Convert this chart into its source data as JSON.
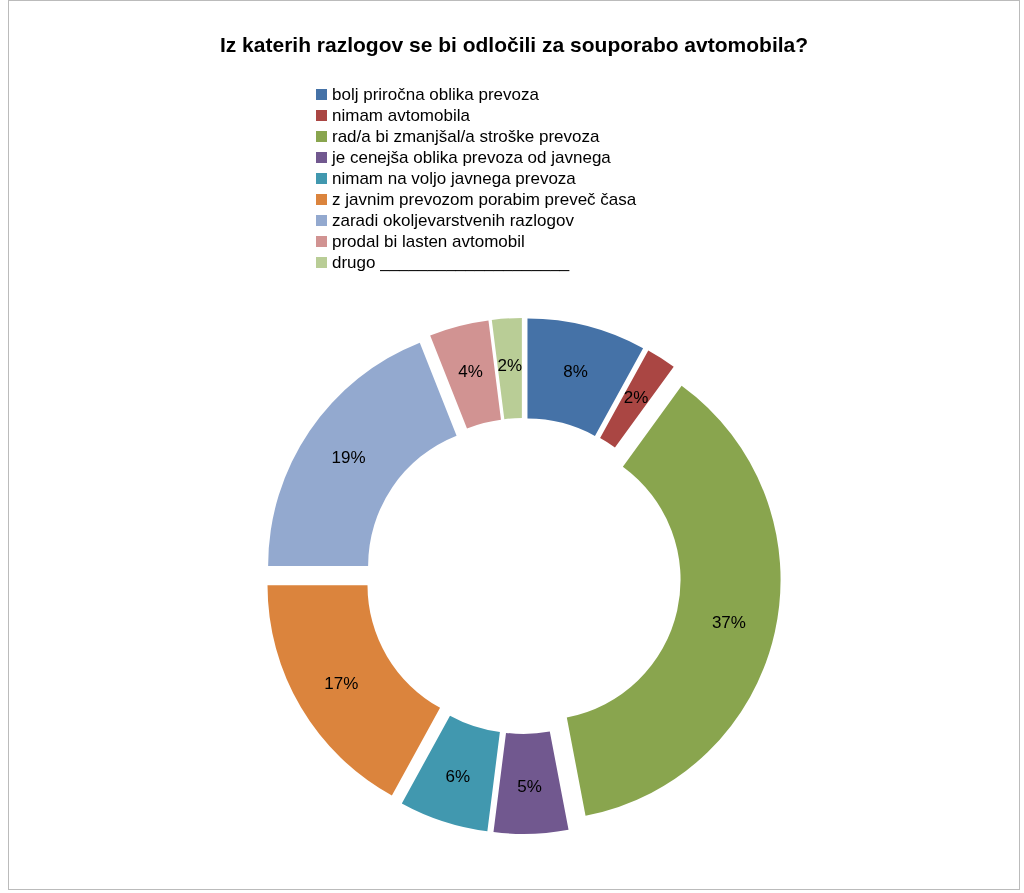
{
  "chart_data": {
    "type": "donut",
    "title": "Iz katerih razlogov se bi odločili za souporabo avtomobila?",
    "categories": [
      "bolj priročna oblika prevoza",
      "nimam avtomobila",
      "rad/a bi zmanjšal/a stroške prevoza",
      "je cenejša oblika prevoza od javnega",
      "nimam na voljo javnega prevoza",
      "z javnim prevozom porabim preveč časa",
      "zaradi okoljevarstvenih razlogov",
      "prodal bi lasten avtomobil",
      "drugo ____________________"
    ],
    "values": [
      8,
      2,
      37,
      5,
      6,
      17,
      19,
      4,
      2
    ],
    "value_labels": [
      "8%",
      "2%",
      "37%",
      "5%",
      "6%",
      "17%",
      "19%",
      "4%",
      "2%"
    ],
    "colors": [
      "#4572a7",
      "#aa4643",
      "#89a54e",
      "#71588f",
      "#4198af",
      "#db843d",
      "#93a9cf",
      "#d19392",
      "#b9cd96"
    ],
    "legend": "top"
  }
}
